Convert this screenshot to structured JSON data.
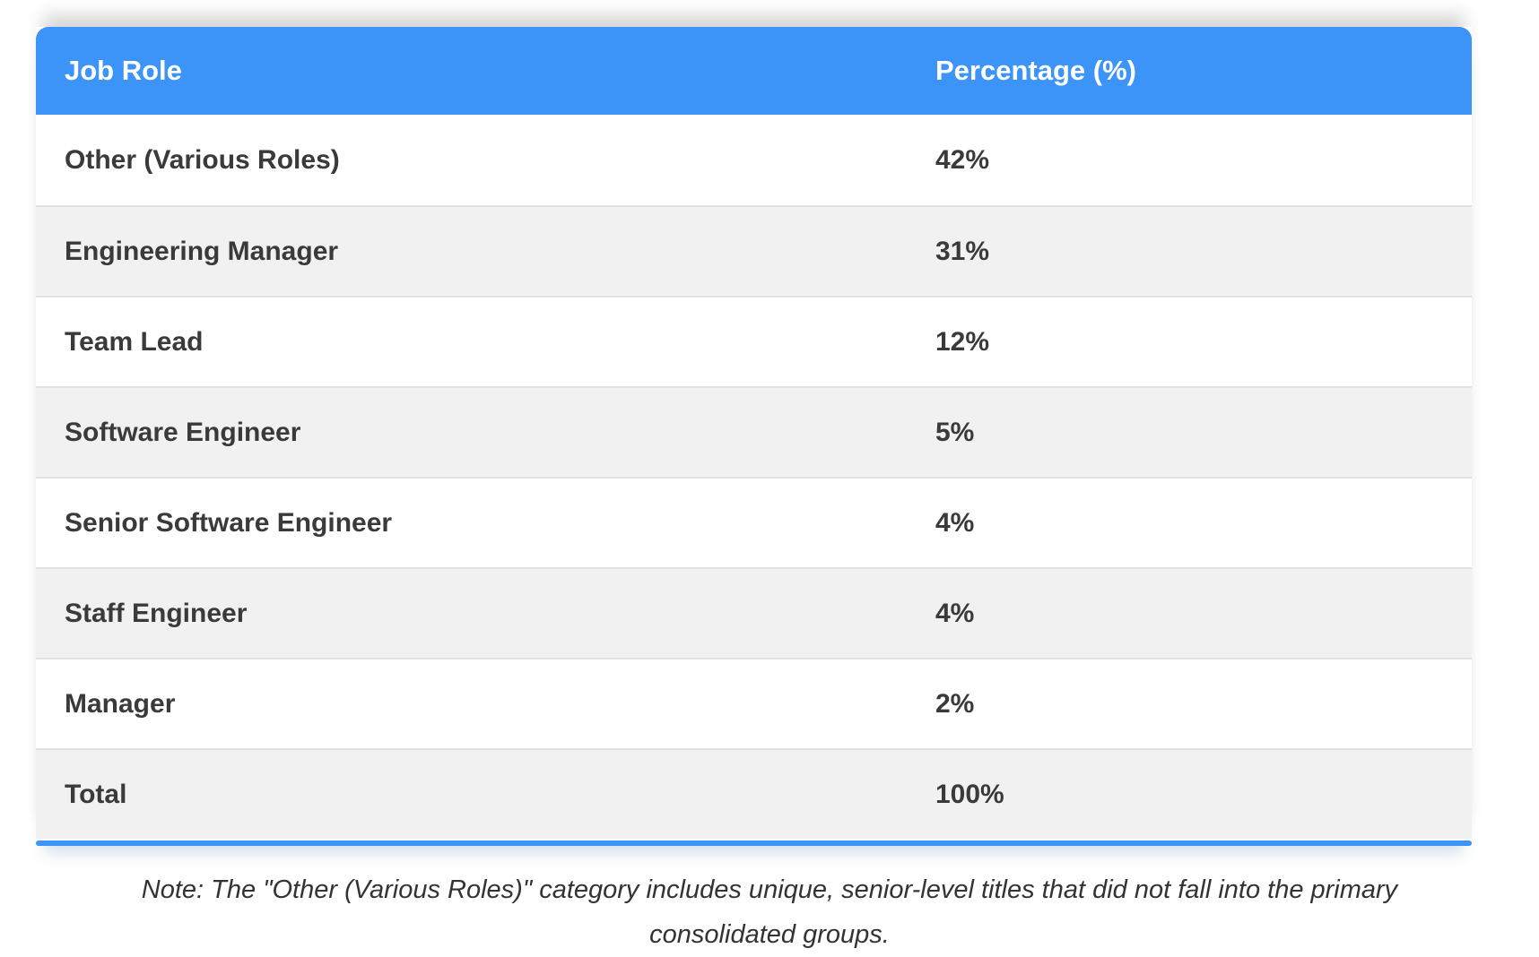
{
  "colors": {
    "accent_blue": "#3d94f8",
    "row_bg": "#ffffff",
    "row_alt_bg": "#f1f1f1",
    "row_border": "#e2e2e2",
    "header_text": "#ffffff",
    "cell_text": "#3a3a3a",
    "note_text": "#333333"
  },
  "table": {
    "headers": [
      "Job Role",
      "Percentage (%)"
    ],
    "rows": [
      {
        "role": "Other (Various Roles)",
        "percentage": "42%"
      },
      {
        "role": "Engineering Manager",
        "percentage": "31%"
      },
      {
        "role": "Team Lead",
        "percentage": "12%"
      },
      {
        "role": "Software Engineer",
        "percentage": "5%"
      },
      {
        "role": "Senior Software Engineer",
        "percentage": "4%"
      },
      {
        "role": "Staff Engineer",
        "percentage": "4%"
      },
      {
        "role": "Manager",
        "percentage": "2%"
      },
      {
        "role": "Total",
        "percentage": "100%"
      }
    ]
  },
  "note": "Note: The \"Other (Various Roles)\" category includes unique, senior-level titles that did not fall into the primary consolidated groups.",
  "chart_data": {
    "type": "table",
    "title": "",
    "columns": [
      "Job Role",
      "Percentage (%)"
    ],
    "categories": [
      "Other (Various Roles)",
      "Engineering Manager",
      "Team Lead",
      "Software Engineer",
      "Senior Software Engineer",
      "Staff Engineer",
      "Manager",
      "Total"
    ],
    "values": [
      42,
      31,
      12,
      5,
      4,
      4,
      2,
      100
    ],
    "value_unit": "%",
    "layout_hints": {
      "header_bg": "#3d94f8",
      "alternating_rows": true,
      "accent_bottom_border": true
    },
    "note": "Note: The \"Other (Various Roles)\" category includes unique, senior-level titles that did not fall into the primary consolidated groups."
  }
}
